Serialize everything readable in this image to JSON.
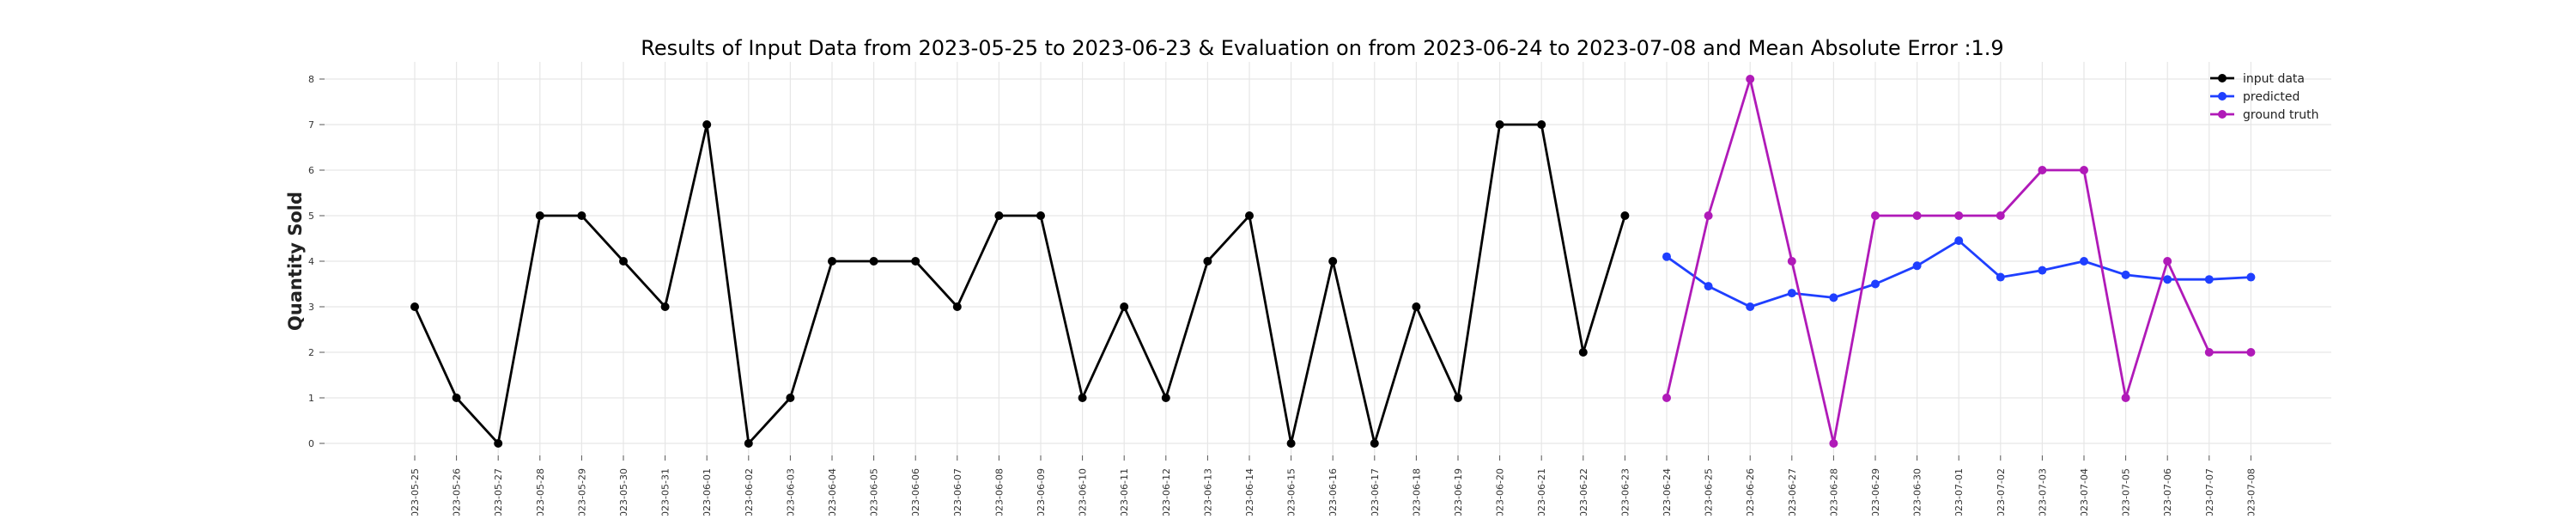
{
  "chart_data": {
    "type": "line",
    "title": "Results of Input Data from 2023-05-25 to 2023-06-23 & Evaluation on from 2023-06-24 to 2023-07-08 and Mean Absolute Error  :1.9",
    "xlabel": "",
    "ylabel": "Quantity Sold",
    "ylim": [
      0,
      8
    ],
    "yticks": [
      0,
      1,
      2,
      3,
      4,
      5,
      6,
      7,
      8
    ],
    "grid": true,
    "legend": "top-right",
    "x": [
      "2023-05-25",
      "2023-05-26",
      "2023-05-27",
      "2023-05-28",
      "2023-05-29",
      "2023-05-30",
      "2023-05-31",
      "2023-06-01",
      "2023-06-02",
      "2023-06-03",
      "2023-06-04",
      "2023-06-05",
      "2023-06-06",
      "2023-06-07",
      "2023-06-08",
      "2023-06-09",
      "2023-06-10",
      "2023-06-11",
      "2023-06-12",
      "2023-06-13",
      "2023-06-14",
      "2023-06-15",
      "2023-06-16",
      "2023-06-17",
      "2023-06-18",
      "2023-06-19",
      "2023-06-20",
      "2023-06-21",
      "2023-06-22",
      "2023-06-23",
      "2023-06-24",
      "2023-06-25",
      "2023-06-26",
      "2023-06-27",
      "2023-06-28",
      "2023-06-29",
      "2023-06-30",
      "2023-07-01",
      "2023-07-02",
      "2023-07-03",
      "2023-07-04",
      "2023-07-05",
      "2023-07-06",
      "2023-07-07",
      "2023-07-08"
    ],
    "xtick_labels": [
      "2023-05-25",
      "2023-05-26",
      "2023-05-27",
      "2023-05-28",
      "2023-05-29",
      "2023-05-30",
      "2023-05-31",
      "2023-06-01",
      "2023-06-02",
      "2023-06-03",
      "2023-06-04",
      "2023-06-05",
      "2023-06-06",
      "2023-06-07",
      "2023-06-08",
      "2023-06-09",
      "2023-06-10",
      "2023-06-11",
      "2023-06-12",
      "2023-06-13",
      "2023-06-14",
      "2023-06-15",
      "2023-06-16",
      "2023-06-17",
      "2023-06-18",
      "2023-06-19",
      "2023-06-20",
      "2023-06-21",
      "2023-06-22",
      "2023-06-23",
      "2023-06-24",
      "2023-06-25",
      "2023-06-26",
      "2023-06-27",
      "2023-06-28",
      "2023-06-29",
      "2023-06-30",
      "2023-07-01",
      "2023-07-02",
      "2023-07-03",
      "2023-07-04",
      "2023-07-05",
      "2023-07-06",
      "2023-07-07",
      "2023-07-08"
    ],
    "series": [
      {
        "name": "input data",
        "color": "#000000",
        "x": [
          "2023-05-25",
          "2023-05-26",
          "2023-05-27",
          "2023-05-28",
          "2023-05-29",
          "2023-05-30",
          "2023-05-31",
          "2023-06-01",
          "2023-06-02",
          "2023-06-03",
          "2023-06-04",
          "2023-06-05",
          "2023-06-06",
          "2023-06-07",
          "2023-06-08",
          "2023-06-09",
          "2023-06-10",
          "2023-06-11",
          "2023-06-12",
          "2023-06-13",
          "2023-06-14",
          "2023-06-15",
          "2023-06-16",
          "2023-06-17",
          "2023-06-18",
          "2023-06-19",
          "2023-06-20",
          "2023-06-21",
          "2023-06-22",
          "2023-06-23"
        ],
        "values": [
          3,
          1,
          0,
          5,
          5,
          4,
          3,
          7,
          0,
          1,
          4,
          4,
          4,
          3,
          5,
          5,
          1,
          3,
          1,
          4,
          5,
          0,
          4,
          0,
          3,
          1,
          7,
          7,
          2,
          5
        ]
      },
      {
        "name": "predicted",
        "color": "#1f3fff",
        "x": [
          "2023-06-24",
          "2023-06-25",
          "2023-06-26",
          "2023-06-27",
          "2023-06-28",
          "2023-06-29",
          "2023-06-30",
          "2023-07-01",
          "2023-07-02",
          "2023-07-03",
          "2023-07-04",
          "2023-07-05",
          "2023-07-06",
          "2023-07-07",
          "2023-07-08"
        ],
        "values": [
          4.1,
          3.45,
          3.0,
          3.3,
          3.2,
          3.5,
          3.9,
          4.45,
          3.65,
          3.8,
          4.0,
          3.7,
          3.6,
          3.6,
          3.65
        ]
      },
      {
        "name": "ground truth",
        "color": "#b01ab8",
        "x": [
          "2023-06-24",
          "2023-06-25",
          "2023-06-26",
          "2023-06-27",
          "2023-06-28",
          "2023-06-29",
          "2023-06-30",
          "2023-07-01",
          "2023-07-02",
          "2023-07-03",
          "2023-07-04",
          "2023-07-05",
          "2023-07-06",
          "2023-07-07",
          "2023-07-08"
        ],
        "values": [
          1,
          5,
          8,
          4,
          0,
          5,
          5,
          5,
          5,
          6,
          6,
          1,
          4,
          2,
          2
        ]
      }
    ]
  }
}
